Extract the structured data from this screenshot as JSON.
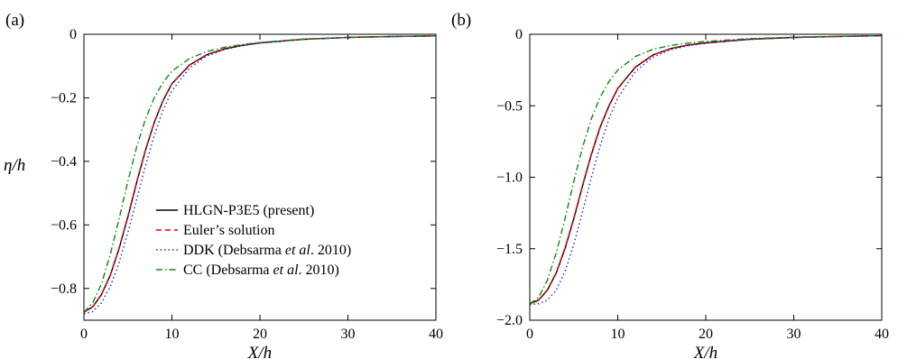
{
  "figure": {
    "legend": {
      "entries": [
        {
          "label": "HLGN-P3E5 (present)",
          "color": "#000000",
          "dash": "solid"
        },
        {
          "label": "Euler’s solution",
          "color": "#e8000b",
          "dash": "dashed"
        },
        {
          "label": "DDK (Debsarma et al. 2010)",
          "label_parts": [
            "DDK (Debsarma ",
            "et al",
            ". 2010)"
          ],
          "color": "#1f1fd6",
          "dash": "dotted"
        },
        {
          "label": "CC (Debsarma et al. 2010)",
          "label_parts": [
            "CC (Debsarma ",
            "et al",
            ". 2010)"
          ],
          "color": "#108a10",
          "dash": "dashdot"
        }
      ]
    }
  },
  "chart_data": [
    {
      "type": "line",
      "panel_label": "(a)",
      "xlabel": "X/h",
      "ylabel": "η/h",
      "xlim": [
        0,
        40
      ],
      "ylim": [
        -0.9,
        0
      ],
      "xticks": [
        0,
        10,
        20,
        30,
        40
      ],
      "xtick_labels": [
        "0",
        "10",
        "20",
        "30",
        "40"
      ],
      "yticks": [
        0,
        -0.2,
        -0.4,
        -0.6,
        -0.8
      ],
      "ytick_labels": [
        "0",
        "−0.2",
        "−0.4",
        "−0.6",
        "−0.8"
      ],
      "grid": false,
      "legend_position": "bottom-center",
      "series": [
        {
          "name": "HLGN-P3E5 (present)",
          "x": [
            0,
            1,
            2,
            3,
            4,
            5,
            6,
            7,
            8,
            9,
            10,
            12,
            14,
            16,
            18,
            20,
            25,
            30,
            35,
            40
          ],
          "y": [
            -0.875,
            -0.858,
            -0.819,
            -0.758,
            -0.674,
            -0.574,
            -0.466,
            -0.364,
            -0.277,
            -0.208,
            -0.156,
            -0.097,
            -0.064,
            -0.046,
            -0.035,
            -0.027,
            -0.016,
            -0.01,
            -0.007,
            -0.005
          ]
        },
        {
          "name": "Euler’s solution",
          "x": [
            0,
            1,
            2,
            3,
            4,
            5,
            6,
            7,
            8,
            9,
            10,
            12,
            14,
            16,
            18,
            20,
            25,
            30,
            35,
            40
          ],
          "y": [
            -0.875,
            -0.857,
            -0.818,
            -0.757,
            -0.672,
            -0.572,
            -0.464,
            -0.362,
            -0.276,
            -0.207,
            -0.155,
            -0.096,
            -0.063,
            -0.045,
            -0.034,
            -0.026,
            -0.015,
            -0.01,
            -0.007,
            -0.005
          ]
        },
        {
          "name": "DDK (Debsarma et al. 2010)",
          "x": [
            0,
            1,
            2,
            3,
            4,
            5,
            6,
            7,
            8,
            9,
            10,
            12,
            14,
            16,
            18,
            20,
            25,
            30,
            35,
            40
          ],
          "y": [
            -0.88,
            -0.873,
            -0.845,
            -0.793,
            -0.718,
            -0.623,
            -0.519,
            -0.413,
            -0.317,
            -0.238,
            -0.178,
            -0.106,
            -0.068,
            -0.048,
            -0.036,
            -0.028,
            -0.016,
            -0.01,
            -0.007,
            -0.005
          ]
        },
        {
          "name": "CC (Debsarma et al. 2010)",
          "x": [
            0,
            1,
            2,
            3,
            4,
            5,
            6,
            7,
            8,
            9,
            10,
            12,
            14,
            16,
            18,
            20,
            25,
            30,
            35,
            40
          ],
          "y": [
            -0.875,
            -0.845,
            -0.785,
            -0.692,
            -0.58,
            -0.462,
            -0.354,
            -0.266,
            -0.199,
            -0.151,
            -0.116,
            -0.076,
            -0.054,
            -0.041,
            -0.032,
            -0.026,
            -0.015,
            -0.01,
            -0.007,
            -0.005
          ]
        }
      ]
    },
    {
      "type": "line",
      "panel_label": "(b)",
      "xlabel": "X/h",
      "ylabel": "",
      "xlim": [
        0,
        40
      ],
      "ylim": [
        -2.0,
        0
      ],
      "xticks": [
        0,
        10,
        20,
        30,
        40
      ],
      "xtick_labels": [
        "0",
        "10",
        "20",
        "30",
        "40"
      ],
      "yticks": [
        0,
        -0.5,
        -1.0,
        -1.5,
        -2.0
      ],
      "ytick_labels": [
        "0",
        "−0.5",
        "−1.0",
        "−1.5",
        "−2.0"
      ],
      "grid": false,
      "series": [
        {
          "name": "HLGN-P3E5 (present)",
          "x": [
            0,
            1,
            2,
            3,
            4,
            5,
            6,
            7,
            8,
            9,
            10,
            12,
            14,
            16,
            18,
            20,
            25,
            30,
            35,
            40
          ],
          "y": [
            -1.885,
            -1.86,
            -1.79,
            -1.67,
            -1.5,
            -1.29,
            -1.06,
            -0.84,
            -0.65,
            -0.5,
            -0.38,
            -0.23,
            -0.145,
            -0.1,
            -0.075,
            -0.06,
            -0.035,
            -0.022,
            -0.015,
            -0.01
          ]
        },
        {
          "name": "Euler’s solution",
          "x": [
            0,
            1,
            2,
            3,
            4,
            5,
            6,
            7,
            8,
            9,
            10,
            12,
            14,
            16,
            18,
            20,
            25,
            30,
            35,
            40
          ],
          "y": [
            -1.885,
            -1.858,
            -1.787,
            -1.666,
            -1.495,
            -1.285,
            -1.055,
            -0.836,
            -0.646,
            -0.497,
            -0.377,
            -0.228,
            -0.144,
            -0.099,
            -0.074,
            -0.059,
            -0.034,
            -0.022,
            -0.015,
            -0.01
          ]
        },
        {
          "name": "DDK (Debsarma et al. 2010)",
          "x": [
            0,
            1,
            2,
            3,
            4,
            5,
            6,
            7,
            8,
            9,
            10,
            12,
            14,
            16,
            18,
            20,
            25,
            30,
            35,
            40
          ],
          "y": [
            -1.89,
            -1.885,
            -1.86,
            -1.79,
            -1.66,
            -1.47,
            -1.24,
            -1.0,
            -0.78,
            -0.59,
            -0.445,
            -0.26,
            -0.16,
            -0.108,
            -0.08,
            -0.063,
            -0.036,
            -0.023,
            -0.016,
            -0.01
          ]
        },
        {
          "name": "CC (Debsarma et al. 2010)",
          "x": [
            0,
            1,
            2,
            3,
            4,
            5,
            6,
            7,
            8,
            9,
            10,
            12,
            14,
            16,
            18,
            20,
            25,
            30,
            35,
            40
          ],
          "y": [
            -1.885,
            -1.84,
            -1.72,
            -1.53,
            -1.29,
            -1.03,
            -0.79,
            -0.59,
            -0.44,
            -0.33,
            -0.25,
            -0.155,
            -0.105,
            -0.078,
            -0.061,
            -0.05,
            -0.03,
            -0.02,
            -0.014,
            -0.01
          ]
        }
      ]
    }
  ]
}
